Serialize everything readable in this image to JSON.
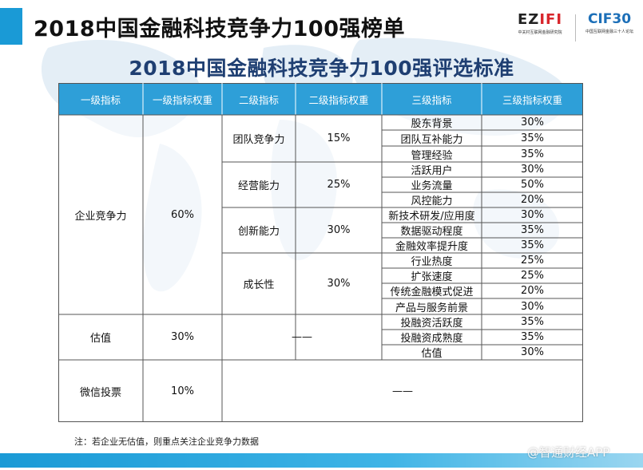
{
  "slide": {
    "title": "2018中国金融科技竞争力100强榜单",
    "subtitle": "2018中国金融科技竞争力100强评选标准"
  },
  "logos": {
    "left": {
      "mark_a": "EZ",
      "mark_b": "IFI",
      "sub": "中关村互联网金融研究院"
    },
    "right": {
      "mark": "CIF30",
      "sub": "中国互联网金融三十人论坛"
    }
  },
  "table": {
    "headers": [
      "一级指标",
      "一级指标权重",
      "二级指标",
      "二级指标权重",
      "三级指标",
      "三级指标权重"
    ],
    "level1": [
      {
        "name": "企业竞争力",
        "weight": "60%"
      },
      {
        "name": "估值",
        "weight": "30%",
        "dash": "——"
      },
      {
        "name": "微信投票",
        "weight": "10%",
        "dash": "——"
      }
    ],
    "level2": [
      {
        "name": "团队竞争力",
        "weight": "15%"
      },
      {
        "name": "经营能力",
        "weight": "25%"
      },
      {
        "name": "创新能力",
        "weight": "30%"
      },
      {
        "name": "成长性",
        "weight": "30%"
      }
    ],
    "level3": [
      {
        "name": "股东背景",
        "weight": "30%"
      },
      {
        "name": "团队互补能力",
        "weight": "35%"
      },
      {
        "name": "管理经验",
        "weight": "35%"
      },
      {
        "name": "活跃用户",
        "weight": "30%"
      },
      {
        "name": "业务流量",
        "weight": "50%"
      },
      {
        "name": "风控能力",
        "weight": "20%"
      },
      {
        "name": "新技术研发/应用度",
        "weight": "30%"
      },
      {
        "name": "数据驱动程度",
        "weight": "35%"
      },
      {
        "name": "金融效率提升度",
        "weight": "35%"
      },
      {
        "name": "行业热度",
        "weight": "25%"
      },
      {
        "name": "扩张速度",
        "weight": "25%"
      },
      {
        "name": "传统金融模式促进",
        "weight": "20%"
      },
      {
        "name": "产品与服务前景",
        "weight": "30%"
      },
      {
        "name": "投融资活跃度",
        "weight": "35%"
      },
      {
        "name": "投融资成熟度",
        "weight": "35%"
      },
      {
        "name": "估值",
        "weight": "30%"
      }
    ]
  },
  "note": "注：若企业无估值，则重点关注企业竞争力数据",
  "watermark": "@智通财经APP",
  "colors": {
    "accent": "#1a9ad6",
    "header": "#2e9fd8",
    "title_blue": "#1f3f72"
  }
}
